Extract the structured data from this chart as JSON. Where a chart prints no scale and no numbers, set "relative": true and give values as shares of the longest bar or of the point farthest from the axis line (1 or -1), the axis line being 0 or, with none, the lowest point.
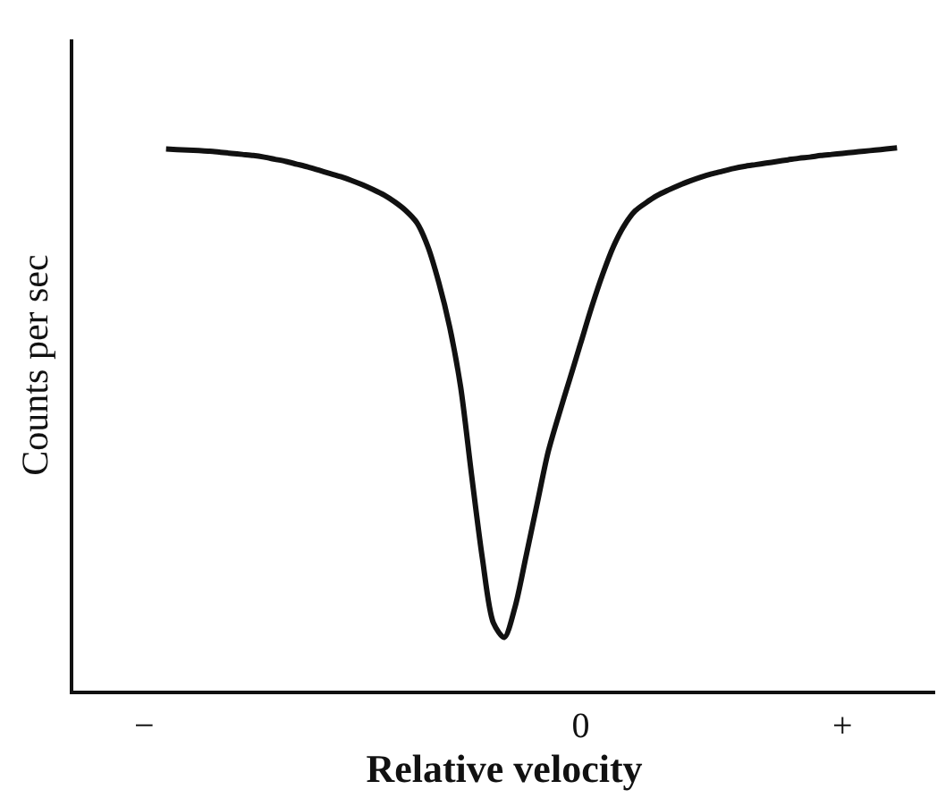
{
  "chart_data": {
    "type": "line",
    "xlabel": "Relative velocity",
    "ylabel": "Counts per sec",
    "relative": true,
    "categories": [
      null,
      null,
      null,
      null,
      null,
      null,
      "−",
      null,
      null,
      null,
      null,
      null,
      null,
      null,
      null,
      null,
      null,
      null,
      null,
      null,
      null,
      null,
      null,
      null,
      null,
      null,
      null,
      null,
      null,
      null,
      null,
      null,
      null,
      null,
      null,
      null,
      null,
      null,
      null,
      null,
      null,
      null,
      null,
      null,
      null,
      null,
      "0",
      null,
      null,
      null,
      null,
      null,
      null,
      null,
      null,
      null,
      null,
      null,
      null,
      null,
      null,
      null,
      null,
      null,
      null,
      null,
      null,
      null,
      null,
      null,
      "+",
      null,
      null,
      null,
      null,
      null,
      null,
      null,
      null
    ],
    "values": [
      null,
      null,
      null,
      null,
      null,
      null,
      null,
      null,
      0.998,
      0.997,
      0.996,
      0.995,
      0.994,
      0.992,
      0.99,
      0.988,
      0.986,
      0.983,
      0.979,
      0.975,
      0.97,
      0.965,
      0.959,
      0.953,
      0.947,
      0.94,
      0.932,
      0.923,
      0.913,
      0.9,
      0.884,
      0.862,
      0.818,
      0.752,
      0.67,
      0.56,
      0.398,
      0.243,
      0.125,
      0.098,
      0.155,
      0.248,
      0.343,
      0.438,
      0.508,
      0.574,
      0.64,
      0.706,
      0.766,
      0.818,
      0.857,
      0.884,
      0.899,
      0.912,
      0.922,
      0.931,
      0.939,
      0.946,
      0.952,
      0.957,
      0.962,
      0.966,
      0.969,
      0.972,
      0.975,
      0.978,
      0.981,
      0.983,
      0.986,
      0.988,
      0.99,
      0.992,
      0.994,
      0.996,
      0.998,
      1.0,
      null,
      null,
      null
    ],
    "color": "#111111",
    "tick_labels": "x",
    "line_style": "solid"
  }
}
